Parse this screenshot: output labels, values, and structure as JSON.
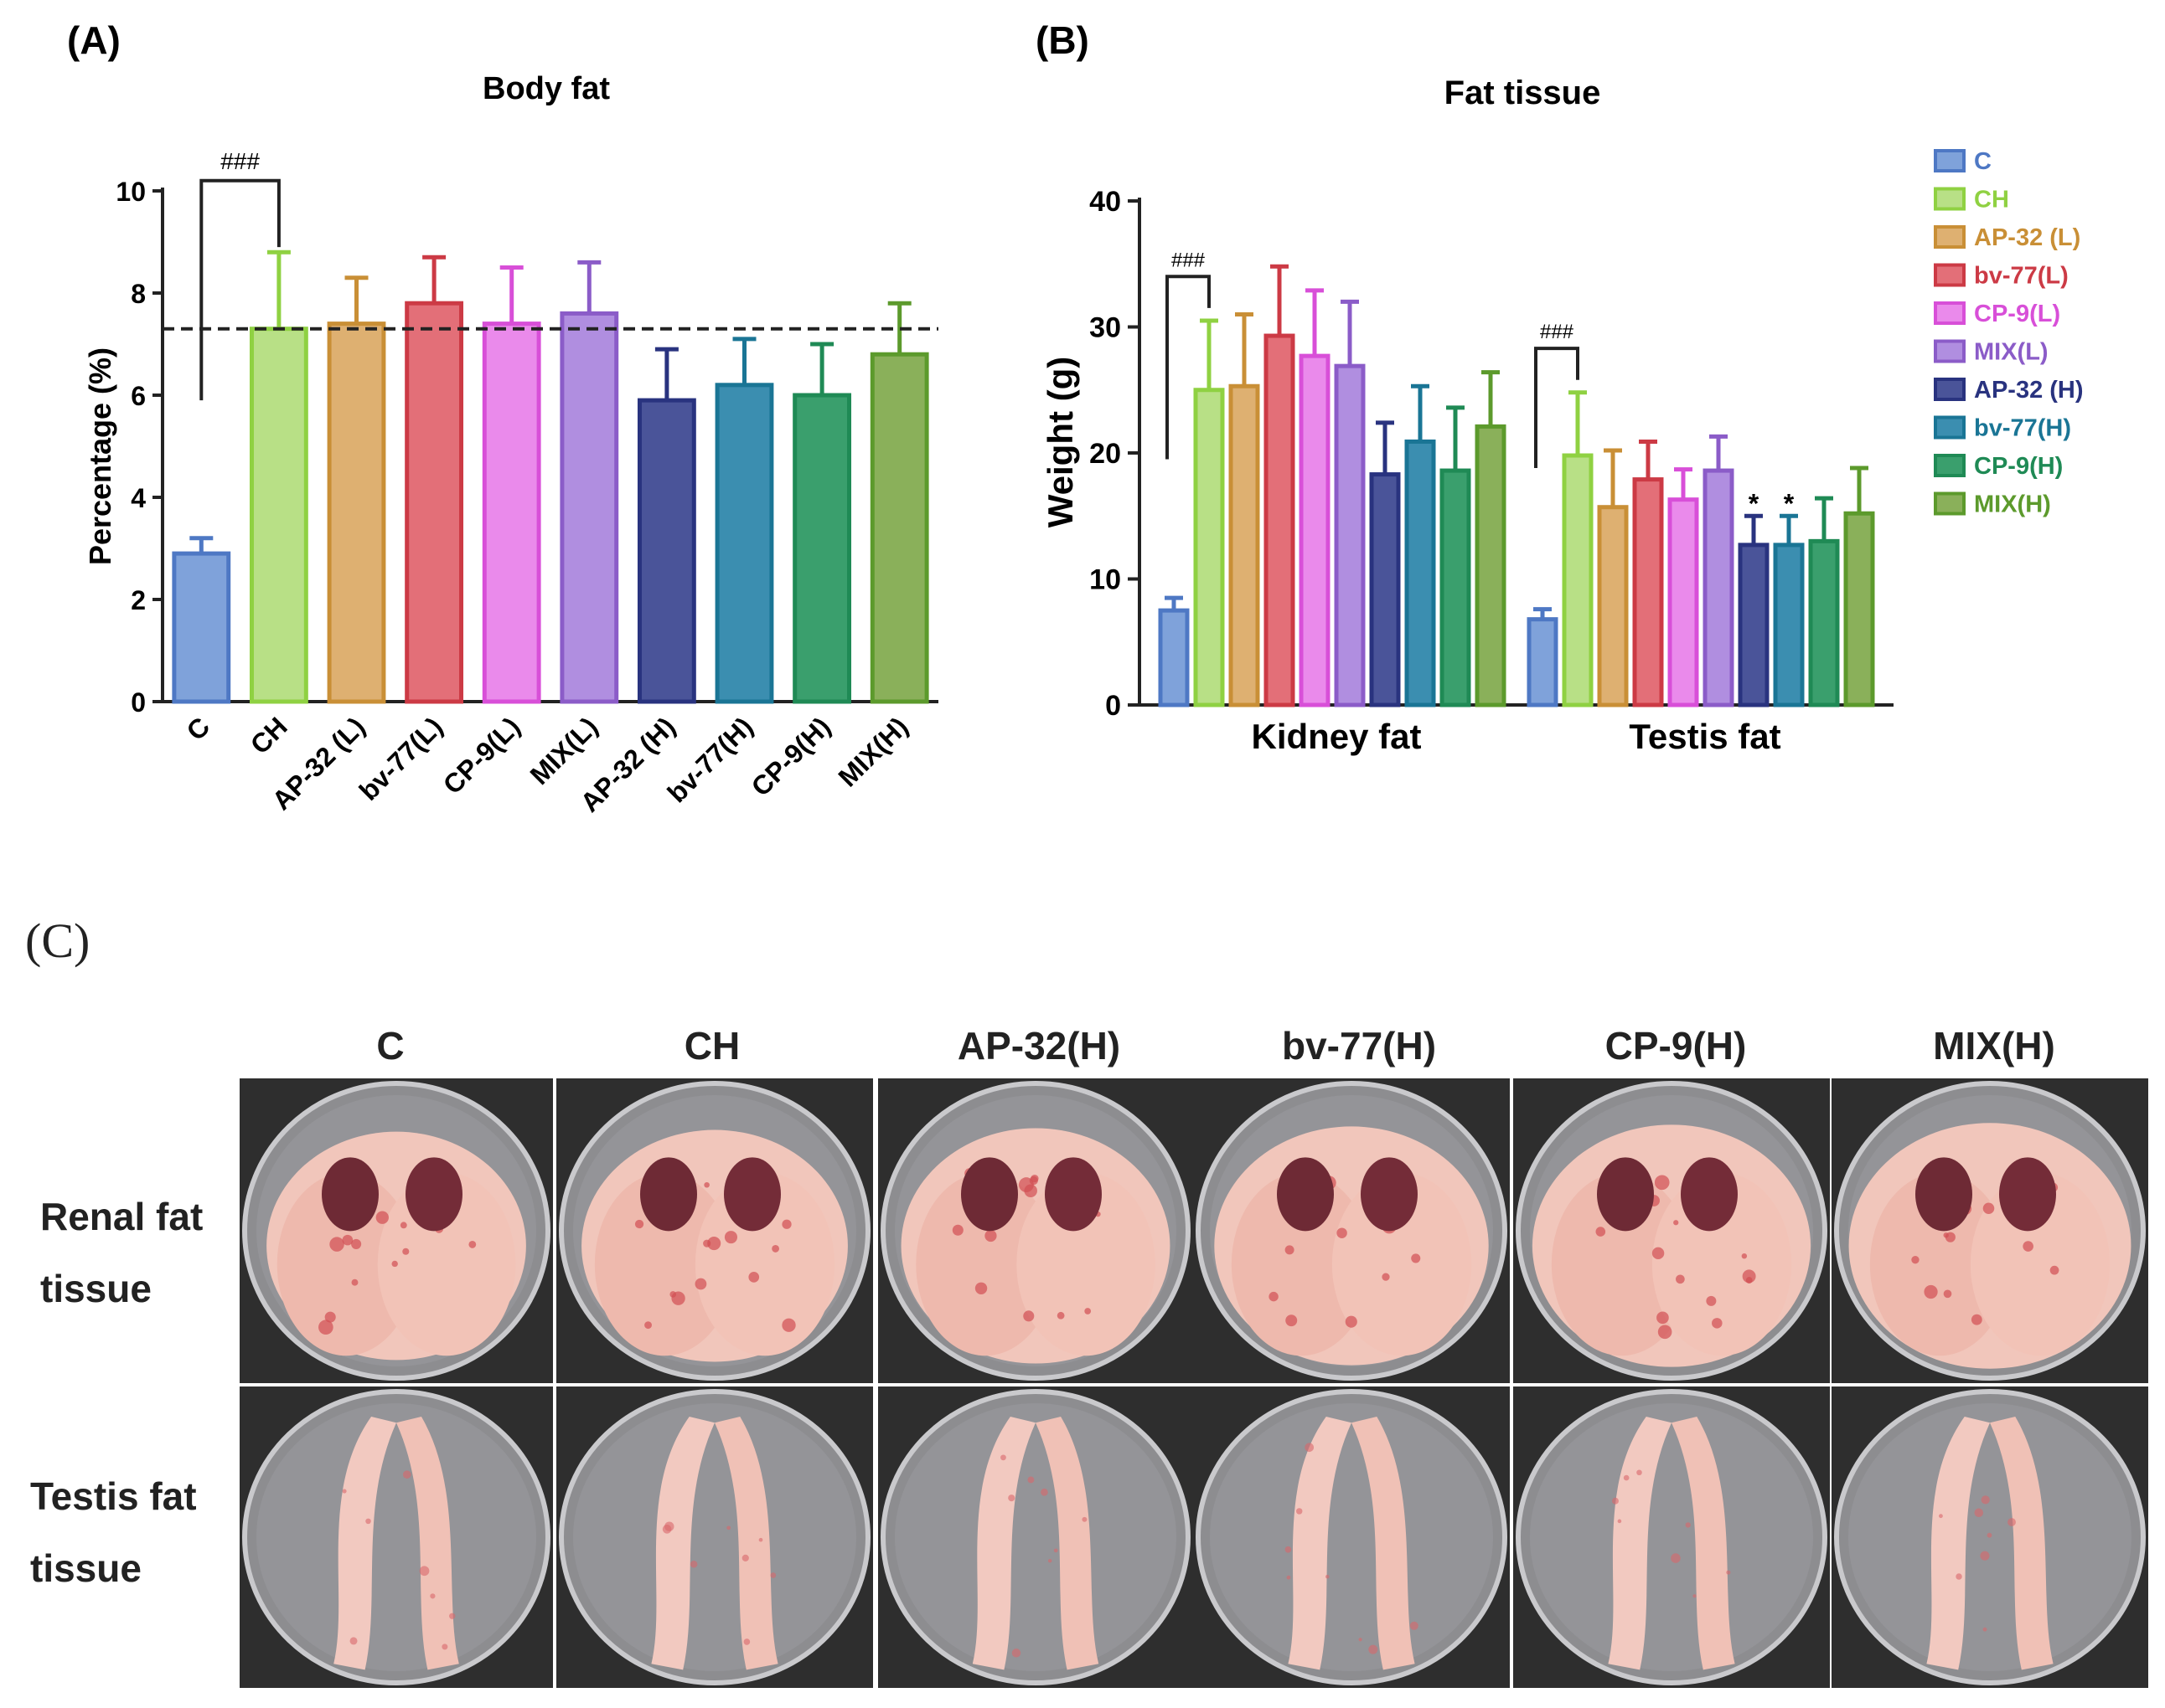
{
  "panelA": {
    "label": "(A)",
    "chart_data": {
      "type": "bar",
      "title": "Body fat",
      "ylabel": "Percentage (%)",
      "xlabel": "",
      "ylim": [
        0,
        10
      ],
      "yticks": [
        0,
        2,
        4,
        6,
        8,
        10
      ],
      "categories": [
        "C",
        "CH",
        "AP-32 (L)",
        "bv-77(L)",
        "CP-9(L)",
        "MIX(L)",
        "AP-32 (H)",
        "bv-77(H)",
        "CP-9(H)",
        "MIX(H)"
      ],
      "values": [
        2.9,
        7.3,
        7.4,
        7.8,
        7.4,
        7.6,
        5.9,
        6.2,
        6.0,
        6.8
      ],
      "errors": [
        0.3,
        1.5,
        0.9,
        0.9,
        1.1,
        1.0,
        1.0,
        0.9,
        1.0,
        1.0
      ],
      "reference_line": 7.3,
      "annotations": [
        {
          "text": "###",
          "between": [
            "C",
            "CH"
          ]
        }
      ],
      "colors": [
        "#4e78c4",
        "#8fd142",
        "#c98f36",
        "#cc3a45",
        "#d84fd8",
        "#8b5cc8",
        "#29337f",
        "#1a7595",
        "#1f8a55",
        "#5c9a2c"
      ],
      "fill_colors": [
        "#7fa2da",
        "#b8e086",
        "#deb071",
        "#e36f78",
        "#ea8aeb",
        "#b08ee0",
        "#4a5499",
        "#3b8eb0",
        "#3a9f6d",
        "#8ab05a"
      ]
    }
  },
  "panelB": {
    "label": "(B)",
    "chart_data": {
      "type": "bar",
      "title": "Fat tissue",
      "ylabel": "Weight (g)",
      "xlabel": "",
      "ylim": [
        0,
        40
      ],
      "yticks": [
        0,
        10,
        20,
        30,
        40
      ],
      "categories": [
        "Kidney fat",
        "Testis fat"
      ],
      "series": [
        {
          "name": "C",
          "values": [
            7.5,
            6.8
          ],
          "errors": [
            1.0,
            0.8
          ]
        },
        {
          "name": "CH",
          "values": [
            25.0,
            19.8
          ],
          "errors": [
            5.5,
            5.0
          ]
        },
        {
          "name": "AP-32 (L)",
          "values": [
            25.3,
            15.7
          ],
          "errors": [
            5.7,
            4.5
          ]
        },
        {
          "name": "bv-77(L)",
          "values": [
            29.3,
            17.9
          ],
          "errors": [
            5.5,
            3.0
          ]
        },
        {
          "name": "CP-9(L)",
          "values": [
            27.7,
            16.3
          ],
          "errors": [
            5.2,
            2.4
          ]
        },
        {
          "name": "MIX(L)",
          "values": [
            26.9,
            18.6
          ],
          "errors": [
            5.1,
            2.7
          ]
        },
        {
          "name": "AP-32 (H)",
          "values": [
            18.3,
            12.7
          ],
          "errors": [
            4.1,
            2.3
          ]
        },
        {
          "name": "bv-77(H)",
          "values": [
            20.9,
            12.7
          ],
          "errors": [
            4.4,
            2.3
          ]
        },
        {
          "name": "CP-9(H)",
          "values": [
            18.6,
            13.0
          ],
          "errors": [
            5.0,
            3.4
          ]
        },
        {
          "name": "MIX(H)",
          "values": [
            22.1,
            15.2
          ],
          "errors": [
            4.3,
            3.6
          ]
        }
      ],
      "annotations": [
        {
          "text": "###",
          "category": "Kidney fat",
          "between": [
            "C",
            "CH"
          ]
        },
        {
          "text": "###",
          "category": "Testis fat",
          "between": [
            "C",
            "CH"
          ]
        },
        {
          "text": "*",
          "category": "Testis fat",
          "series": "AP-32 (H)"
        },
        {
          "text": "*",
          "category": "Testis fat",
          "series": "bv-77(H)"
        }
      ],
      "legend": [
        "C",
        "CH",
        "AP-32 (L)",
        "bv-77(L)",
        "CP-9(L)",
        "MIX(L)",
        "AP-32 (H)",
        "bv-77(H)",
        "CP-9(H)",
        "MIX(H)"
      ],
      "legend_position": "right"
    }
  },
  "panelC": {
    "label": "(C)",
    "columns": [
      "C",
      "CH",
      "AP-32(H)",
      "bv-77(H)",
      "CP-9(H)",
      "MIX(H)"
    ],
    "rows": [
      {
        "line1": "Renal fat",
        "line2": "tissue"
      },
      {
        "line1": "Testis fat",
        "line2": "tissue"
      }
    ]
  }
}
